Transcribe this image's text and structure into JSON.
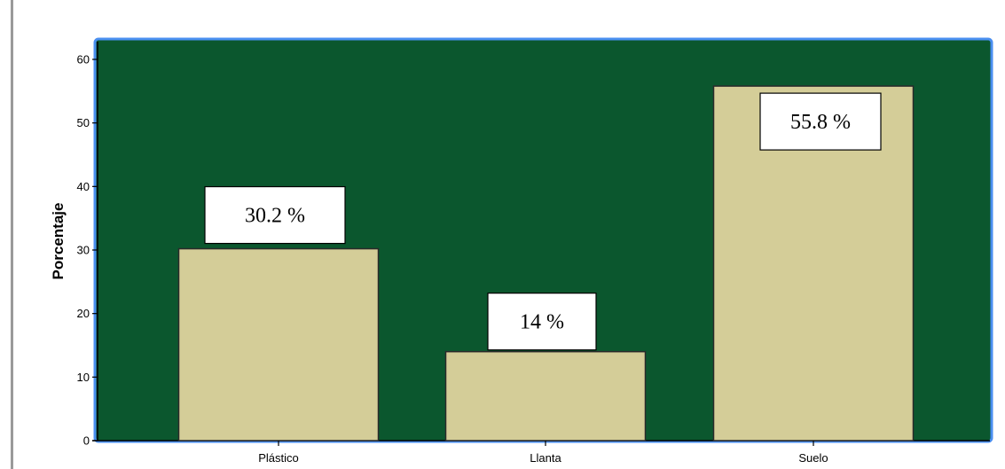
{
  "colors": {
    "plot_background": "#0b572e",
    "bar_fill": "#d4cd98",
    "bar_stroke": "#2a2a2a",
    "frame_border": "#4a8ff0",
    "label_box_fill": "#ffffff"
  },
  "chart_data": {
    "type": "bar",
    "categories": [
      "Plástico",
      "Llanta",
      "Suelo"
    ],
    "values": [
      30.2,
      14,
      55.8
    ],
    "data_labels": [
      "30.2 %",
      "14 %",
      "55.8 %"
    ],
    "title": "",
    "xlabel": "",
    "ylabel": "Porcentaje",
    "ylim": [
      0,
      60
    ],
    "yticks": [
      "0",
      "10",
      "20",
      "30",
      "40",
      "50",
      "60"
    ],
    "grid": false,
    "legend": "none"
  }
}
